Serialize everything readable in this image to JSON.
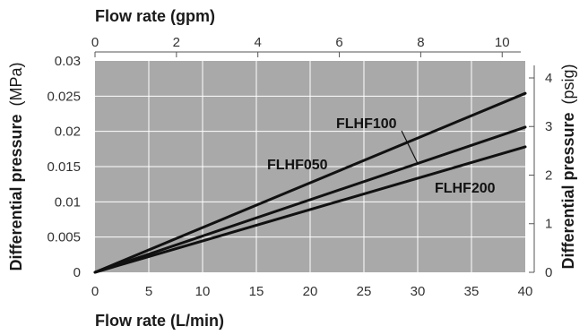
{
  "chart_data": {
    "type": "line",
    "title": "",
    "x_bottom": {
      "label": "Flow rate (L/min)",
      "range": [
        0,
        40
      ],
      "ticks": [
        "0",
        "5",
        "10",
        "15",
        "20",
        "25",
        "30",
        "35",
        "40"
      ]
    },
    "x_top": {
      "label": "Flow rate (gpm)",
      "range": [
        0,
        10.567
      ],
      "ticks": [
        "0",
        "2",
        "4",
        "6",
        "8",
        "10"
      ]
    },
    "y_left": {
      "label": "Differential pressure",
      "unit": "(MPa)",
      "range": [
        0,
        0.03
      ],
      "ticks": [
        "0",
        "0.005",
        "0.01",
        "0.015",
        "0.02",
        "0.025",
        "0.03"
      ]
    },
    "y_right": {
      "label": "Differential pressure",
      "unit": "(psig)",
      "range": [
        0,
        4.35
      ],
      "ticks": [
        "0",
        "1",
        "2",
        "3",
        "4"
      ]
    },
    "grid": true,
    "series": [
      {
        "name": "FLHF050",
        "x": [
          0,
          40
        ],
        "y": [
          0,
          0.0254
        ]
      },
      {
        "name": "FLHF100",
        "x": [
          0,
          40
        ],
        "y": [
          0,
          0.0206
        ]
      },
      {
        "name": "FLHF200",
        "x": [
          0,
          40
        ],
        "y": [
          0,
          0.0178
        ]
      }
    ],
    "colors": {
      "plot_bg": "#a9a9a9",
      "grid": "#ffffff",
      "line": "#111111"
    }
  }
}
